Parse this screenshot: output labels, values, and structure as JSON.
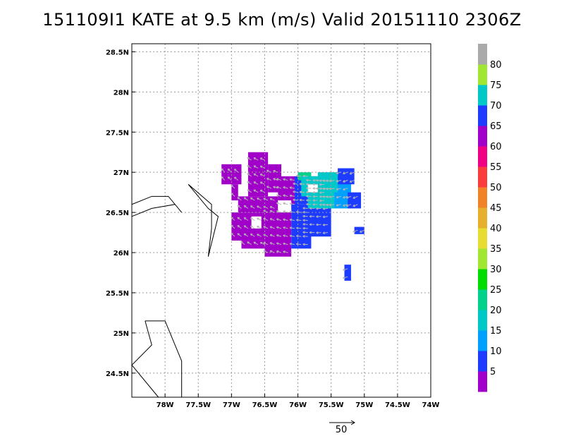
{
  "title": "151109I1 KATE at 9.5 km (m/s) Valid 20151110 2306Z",
  "chart_data": {
    "type": "heatmap",
    "title": "151109I1 KATE at 9.5 km (m/s) Valid 20151110 2306Z",
    "xlim": [
      -78.5,
      -74.0
    ],
    "ylim": [
      24.2,
      28.6
    ],
    "x_ticks": [
      -78,
      -77.5,
      -77,
      -76.5,
      -76,
      -75.5,
      -75,
      -74.5,
      -74
    ],
    "x_tick_labels": [
      "78W",
      "77.5W",
      "77W",
      "76.5W",
      "76W",
      "75.5W",
      "75W",
      "74.5W",
      "74W"
    ],
    "y_ticks": [
      24.5,
      25,
      25.5,
      26,
      26.5,
      27,
      27.5,
      28,
      28.5
    ],
    "y_tick_labels": [
      "24.5N",
      "25N",
      "25.5N",
      "26N",
      "26.5N",
      "27N",
      "27.5N",
      "28N",
      "28.5N"
    ],
    "grid": true,
    "colorbar": {
      "levels": [
        0,
        5,
        10,
        15,
        20,
        25,
        30,
        35,
        40,
        45,
        50,
        55,
        60,
        65,
        70,
        75,
        80,
        85
      ],
      "labels": [
        "5",
        "10",
        "15",
        "20",
        "25",
        "30",
        "35",
        "40",
        "45",
        "50",
        "55",
        "60",
        "65",
        "70",
        "75",
        "80"
      ],
      "colors": [
        "#a000c8",
        "#1e3cff",
        "#00a0ff",
        "#00c8c8",
        "#00d28c",
        "#00dc00",
        "#a0e632",
        "#e6dc32",
        "#e6af2d",
        "#f08228",
        "#fa3c3c",
        "#f00082",
        "#a000c8",
        "#1e3cff",
        "#00c8c8",
        "#a0e632",
        "#aaaaaa"
      ],
      "placement": "right"
    },
    "wind_reference": {
      "label": "50",
      "speed": 50
    },
    "cells": [
      {
        "lon_min": -77.15,
        "lon_max": -76.85,
        "lat_min": 26.85,
        "lat_max": 27.1,
        "value": 3
      },
      {
        "lon_min": -77.0,
        "lon_max": -76.9,
        "lat_min": 26.65,
        "lat_max": 26.85,
        "value": 3
      },
      {
        "lon_min": -76.9,
        "lon_max": -76.3,
        "lat_min": 26.5,
        "lat_max": 26.7,
        "value": 4
      },
      {
        "lon_min": -76.75,
        "lon_max": -76.45,
        "lat_min": 26.7,
        "lat_max": 27.25,
        "value": 4
      },
      {
        "lon_min": -76.45,
        "lon_max": -76.25,
        "lat_min": 26.75,
        "lat_max": 27.1,
        "value": 4
      },
      {
        "lon_min": -77.0,
        "lon_max": -76.5,
        "lat_min": 26.15,
        "lat_max": 26.5,
        "value": 4
      },
      {
        "lon_min": -76.5,
        "lon_max": -76.1,
        "lat_min": 25.95,
        "lat_max": 26.55,
        "value": 4
      },
      {
        "lon_min": -76.85,
        "lon_max": -76.5,
        "lat_min": 26.05,
        "lat_max": 26.15,
        "value": 3
      },
      {
        "lon_min": -76.3,
        "lon_max": -76.0,
        "lat_min": 26.55,
        "lat_max": 26.95,
        "value": 4
      },
      {
        "lon_min": -76.1,
        "lon_max": -75.8,
        "lat_min": 26.05,
        "lat_max": 26.6,
        "value": 8
      },
      {
        "lon_min": -75.9,
        "lon_max": -75.5,
        "lat_min": 26.2,
        "lat_max": 26.6,
        "value": 8
      },
      {
        "lon_min": -76.05,
        "lon_max": -75.6,
        "lat_min": 26.6,
        "lat_max": 26.95,
        "value": 9
      },
      {
        "lon_min": -75.6,
        "lon_max": -75.2,
        "lat_min": 26.55,
        "lat_max": 26.95,
        "value": 11
      },
      {
        "lon_min": -75.4,
        "lon_max": -75.15,
        "lat_min": 26.85,
        "lat_max": 27.05,
        "value": 9
      },
      {
        "lon_min": -75.25,
        "lon_max": -75.05,
        "lat_min": 26.55,
        "lat_max": 26.75,
        "value": 8
      },
      {
        "lon_min": -75.85,
        "lon_max": -75.45,
        "lat_min": 26.55,
        "lat_max": 26.95,
        "value": 17
      },
      {
        "lon_min": -75.7,
        "lon_max": -75.4,
        "lat_min": 26.75,
        "lat_max": 27.0,
        "value": 18
      },
      {
        "lon_min": -76.0,
        "lon_max": -75.8,
        "lat_min": 26.9,
        "lat_max": 27.0,
        "value": 21
      },
      {
        "lon_min": -75.95,
        "lon_max": -75.75,
        "lat_min": 26.7,
        "lat_max": 26.95,
        "value": 16
      },
      {
        "lon_min": -75.15,
        "lon_max": -75.0,
        "lat_min": 26.23,
        "lat_max": 26.32,
        "value": 8
      },
      {
        "lon_min": -75.3,
        "lon_max": -75.2,
        "lat_min": 25.65,
        "lat_max": 25.85,
        "value": 8
      }
    ],
    "holes": [
      {
        "lon_min": -76.3,
        "lon_max": -76.1,
        "lat_min": 26.5,
        "lat_max": 26.65
      },
      {
        "lon_min": -76.7,
        "lon_max": -76.55,
        "lat_min": 26.3,
        "lat_max": 26.45
      },
      {
        "lon_min": -75.85,
        "lon_max": -75.7,
        "lat_min": 26.75,
        "lat_max": 26.85
      }
    ],
    "coastlines": [
      [
        [
          -78.5,
          26.6
        ],
        [
          -78.2,
          26.7
        ],
        [
          -77.95,
          26.7
        ],
        [
          -77.75,
          26.5
        ],
        [
          -77.85,
          26.6
        ],
        [
          -78.2,
          26.55
        ],
        [
          -78.5,
          26.45
        ]
      ],
      [
        [
          -77.65,
          26.85
        ],
        [
          -77.35,
          26.55
        ],
        [
          -77.2,
          26.45
        ],
        [
          -77.35,
          25.95
        ],
        [
          -77.3,
          26.3
        ],
        [
          -77.3,
          26.6
        ],
        [
          -77.65,
          26.85
        ]
      ],
      [
        [
          -78.3,
          25.15
        ],
        [
          -78.0,
          25.15
        ],
        [
          -77.75,
          24.65
        ],
        [
          -77.75,
          24.2
        ]
      ],
      [
        [
          -78.3,
          25.15
        ],
        [
          -78.2,
          24.85
        ],
        [
          -78.5,
          24.6
        ]
      ],
      [
        [
          -78.5,
          24.6
        ],
        [
          -78.1,
          24.2
        ]
      ]
    ]
  }
}
